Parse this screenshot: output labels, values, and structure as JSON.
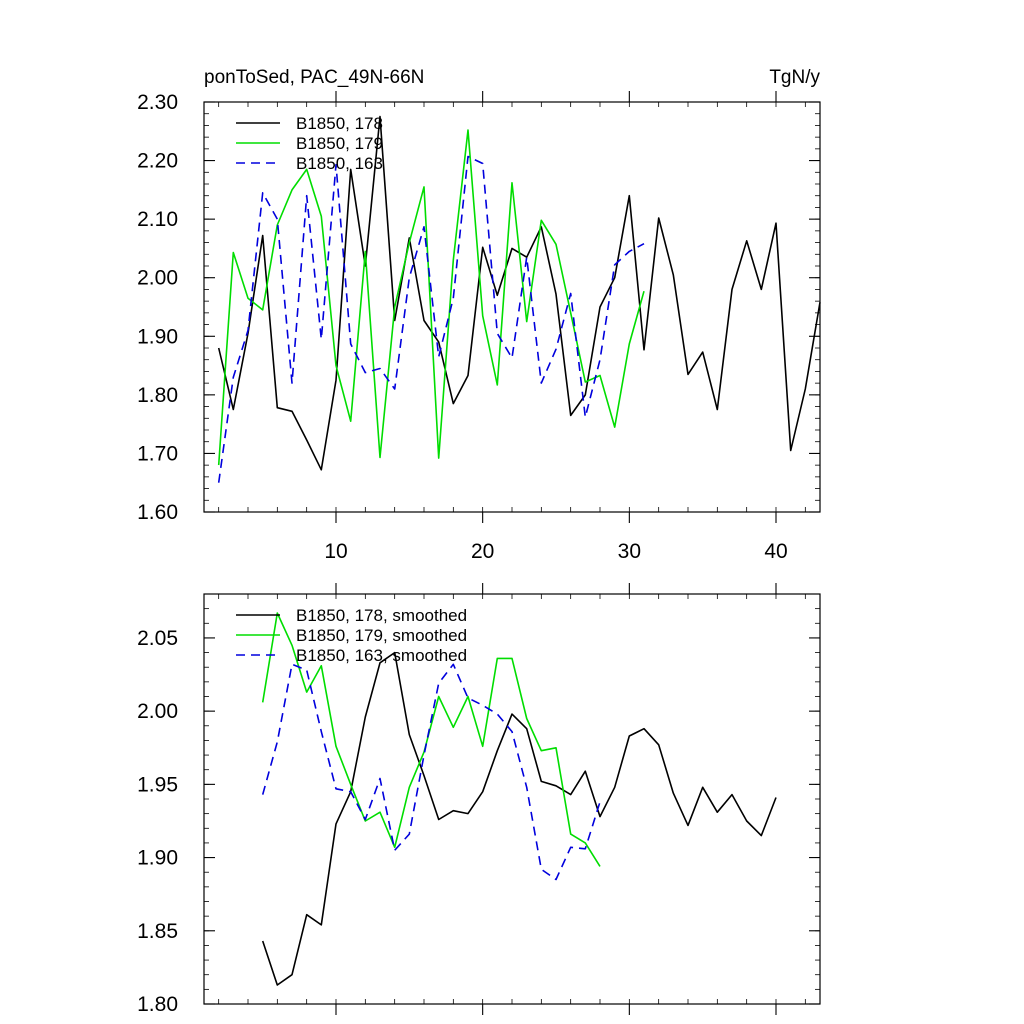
{
  "chart_data": [
    {
      "type": "line",
      "title": "ponToSed, PAC_49N-66N",
      "units": "TgN/y",
      "xlim": [
        1,
        43
      ],
      "ylim": [
        1.6,
        2.3
      ],
      "x_ticks": [
        10,
        20,
        30,
        40
      ],
      "y_ticks": [
        1.6,
        1.7,
        1.8,
        1.9,
        2.0,
        2.1,
        2.2,
        2.3
      ],
      "y_tick_labels": [
        "1.60",
        "1.70",
        "1.80",
        "1.90",
        "2.00",
        "2.10",
        "2.20",
        "2.30"
      ],
      "show_x_tick_labels": true,
      "legend_position": "top-left",
      "series": [
        {
          "name": "B1850, 178",
          "color": "#000000",
          "dash": "solid",
          "x_start": 2,
          "values": [
            1.88,
            1.775,
            1.905,
            2.072,
            1.778,
            1.772,
            1.723,
            1.672,
            1.825,
            2.185,
            2.02,
            2.275,
            1.927,
            2.068,
            1.927,
            1.89,
            1.785,
            1.833,
            2.052,
            1.97,
            2.05,
            2.035,
            2.087,
            1.972,
            1.765,
            1.8,
            1.95,
            2.0,
            2.14,
            1.877,
            2.102,
            2.005,
            1.835,
            1.873,
            1.775,
            1.98,
            2.063,
            1.98,
            2.093,
            1.705,
            1.81,
            1.958
          ]
        },
        {
          "name": "B1850, 179",
          "color": "#00dd00",
          "dash": "solid",
          "x_start": 2,
          "values": [
            1.68,
            2.043,
            1.965,
            1.945,
            2.09,
            2.15,
            2.185,
            2.105,
            1.85,
            1.755,
            2.045,
            1.693,
            1.95,
            2.06,
            2.155,
            1.692,
            2.03,
            2.252,
            1.935,
            1.817,
            2.162,
            1.925,
            2.098,
            2.057,
            1.94,
            1.822,
            1.833,
            1.745,
            1.887,
            1.977
          ]
        },
        {
          "name": "B1850, 163",
          "color": "#0000dd",
          "dash": "dashed",
          "x_start": 2,
          "values": [
            1.65,
            1.83,
            1.91,
            2.145,
            2.1,
            1.82,
            2.14,
            1.895,
            2.193,
            1.887,
            1.838,
            1.845,
            1.81,
            2.0,
            2.087,
            1.865,
            1.965,
            2.207,
            2.195,
            1.905,
            1.863,
            2.035,
            1.82,
            1.878,
            1.973,
            1.762,
            1.86,
            2.022,
            2.045,
            2.058
          ]
        }
      ]
    },
    {
      "type": "line",
      "title": "",
      "xlim": [
        1,
        43
      ],
      "ylim": [
        1.8,
        2.08
      ],
      "x_ticks": [
        10,
        20,
        30,
        40
      ],
      "y_ticks": [
        1.8,
        1.85,
        1.9,
        1.95,
        2.0,
        2.05
      ],
      "y_tick_labels": [
        "1.80",
        "1.85",
        "1.90",
        "1.95",
        "2.00",
        "2.05"
      ],
      "show_x_tick_labels": false,
      "legend_position": "top-left",
      "series": [
        {
          "name": "B1850, 178, smoothed",
          "color": "#000000",
          "dash": "solid",
          "x_start": 5,
          "values": [
            1.843,
            1.813,
            1.82,
            1.861,
            1.854,
            1.923,
            1.945,
            1.996,
            2.033,
            2.04,
            1.984,
            1.956,
            1.926,
            1.932,
            1.93,
            1.945,
            1.973,
            1.998,
            1.988,
            1.952,
            1.949,
            1.943,
            1.959,
            1.928,
            1.948,
            1.983,
            1.988,
            1.977,
            1.944,
            1.922,
            1.948,
            1.931,
            1.943,
            1.925,
            1.915,
            1.941
          ]
        },
        {
          "name": "B1850, 179, smoothed",
          "color": "#00dd00",
          "dash": "solid",
          "x_start": 5,
          "values": [
            2.006,
            2.067,
            2.045,
            2.013,
            2.031,
            1.976,
            1.95,
            1.925,
            1.931,
            1.907,
            1.948,
            1.972,
            2.01,
            1.989,
            2.01,
            1.976,
            2.036,
            2.036,
            1.995,
            1.973,
            1.975,
            1.916,
            1.91,
            1.894
          ]
        },
        {
          "name": "B1850, 163, smoothed",
          "color": "#0000dd",
          "dash": "dashed",
          "x_start": 5,
          "values": [
            1.943,
            1.979,
            2.032,
            2.028,
            1.986,
            1.947,
            1.945,
            1.926,
            1.954,
            1.905,
            1.916,
            1.97,
            2.019,
            2.032,
            2.009,
            2.004,
            1.998,
            1.986,
            1.948,
            1.892,
            1.885,
            1.907,
            1.906,
            1.938
          ]
        }
      ]
    }
  ]
}
